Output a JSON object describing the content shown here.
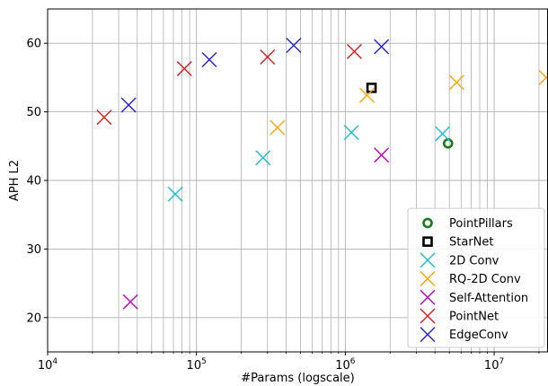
{
  "chart_data": {
    "type": "scatter",
    "xlabel": "#Params (logscale)",
    "ylabel": "APH L2",
    "xscale": "log",
    "xlim": [
      10000,
      23000000
    ],
    "ylim": [
      15,
      65
    ],
    "grid": true,
    "legend_position": "bottom-right",
    "x_ticks": [
      {
        "base": "10",
        "exp": "4",
        "value": 10000
      },
      {
        "base": "10",
        "exp": "5",
        "value": 100000
      },
      {
        "base": "10",
        "exp": "6",
        "value": 1000000
      },
      {
        "base": "10",
        "exp": "7",
        "value": 10000000
      }
    ],
    "y_ticks": [
      {
        "label": "20",
        "value": 20
      },
      {
        "label": "30",
        "value": 30
      },
      {
        "label": "40",
        "value": 40
      },
      {
        "label": "50",
        "value": 50
      },
      {
        "label": "60",
        "value": 60
      }
    ],
    "series": [
      {
        "name": "PointPillars",
        "marker": "circle",
        "color": "#1a7a1a",
        "points": [
          {
            "x": 4900000,
            "y": 45.4
          }
        ]
      },
      {
        "name": "StarNet",
        "marker": "square",
        "color": "#000000",
        "points": [
          {
            "x": 1500000,
            "y": 53.5
          }
        ]
      },
      {
        "name": "2D Conv",
        "marker": "x",
        "color": "#17becf",
        "points": [
          {
            "x": 72000,
            "y": 38.0
          },
          {
            "x": 280000,
            "y": 43.3
          },
          {
            "x": 1100000,
            "y": 47.0
          },
          {
            "x": 4500000,
            "y": 46.8
          }
        ]
      },
      {
        "name": "RQ-2D Conv",
        "marker": "x",
        "color": "#ffa500",
        "points": [
          {
            "x": 350000,
            "y": 47.7
          },
          {
            "x": 1400000,
            "y": 52.4
          },
          {
            "x": 5600000,
            "y": 54.3
          },
          {
            "x": 22400000,
            "y": 55.0
          }
        ]
      },
      {
        "name": "Self-Attention",
        "marker": "x",
        "color": "#bf00bf",
        "points": [
          {
            "x": 36000,
            "y": 22.3
          },
          {
            "x": 1750000,
            "y": 43.7
          }
        ]
      },
      {
        "name": "PointNet",
        "marker": "x",
        "color": "#e31a1c",
        "points": [
          {
            "x": 24000,
            "y": 49.2
          },
          {
            "x": 83000,
            "y": 56.3
          },
          {
            "x": 300000,
            "y": 58.0
          },
          {
            "x": 1150000,
            "y": 58.8
          }
        ]
      },
      {
        "name": "EdgeConv",
        "marker": "x",
        "color": "#1f1fe0",
        "points": [
          {
            "x": 35000,
            "y": 51.0
          },
          {
            "x": 122000,
            "y": 57.6
          },
          {
            "x": 450000,
            "y": 59.7
          },
          {
            "x": 1750000,
            "y": 59.5
          }
        ]
      }
    ]
  }
}
